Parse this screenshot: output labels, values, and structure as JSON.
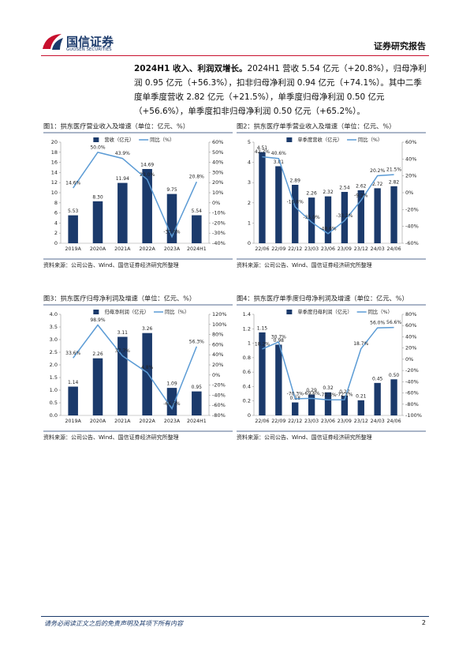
{
  "header": {
    "logo": "国信证券",
    "logo_en": "GUOSEN SECURITIES",
    "report_type": "证券研究报告"
  },
  "body": {
    "lead": "2024H1 收入、利润双增长。",
    "text": "2024H1 营收 5.54 亿元（+20.8%），归母净利润 0.95 亿元（+56.3%），扣非归母净利润 0.94 亿元（+74.1%）。其中二季度单季度营收 2.82 亿元（+21.5%），单季度归母净利润 0.50 亿元（+56.6%），单季度扣非归母净利润 0.50 亿元（+65.2%）。"
  },
  "chart_data": [
    {
      "type": "bar",
      "title": "图1：拱东医疗营业收入及增速（单位：亿元、%）",
      "categories": [
        "2019A",
        "2020A",
        "2021A",
        "2022A",
        "2023A",
        "2024H1"
      ],
      "series": [
        {
          "name": "营收（亿元）",
          "type": "bar",
          "color": "#1b3a6b",
          "values": [
            5.53,
            8.3,
            11.94,
            14.69,
            9.75,
            5.54
          ],
          "value_labels": [
            "5.53",
            "8.30",
            "11.94",
            "14.69",
            "9.75",
            "5.54"
          ]
        },
        {
          "name": "同比（%）",
          "type": "line",
          "axis": "y2",
          "color": "#5b9bd5",
          "values": [
            14.6,
            50.0,
            43.9,
            23.0,
            -33.6,
            20.8
          ],
          "value_labels": [
            "14.6%",
            "50.0%",
            "43.9%",
            "23.0%",
            "-33.6%",
            "20.8%"
          ]
        }
      ],
      "ylim": [
        0,
        20
      ],
      "yticks": [
        0,
        2,
        4,
        6,
        8,
        10,
        12,
        14,
        16,
        18,
        20
      ],
      "y2lim": [
        -40,
        60
      ],
      "y2ticks": [
        {
          "value": -40,
          "label": "-40%"
        },
        {
          "value": -30,
          "label": "-30%"
        },
        {
          "value": -20,
          "label": "-20%"
        },
        {
          "value": -10,
          "label": "-10%"
        },
        {
          "value": 0,
          "label": "0%"
        },
        {
          "value": 10,
          "label": "10%"
        },
        {
          "value": 20,
          "label": "20%"
        },
        {
          "value": 30,
          "label": "30%"
        },
        {
          "value": 40,
          "label": "40%"
        },
        {
          "value": 50,
          "label": "50%"
        },
        {
          "value": 60,
          "label": "60%"
        }
      ],
      "source": "资料来源：公司公告、Wind、国信证券经济研究所整理"
    },
    {
      "type": "bar",
      "title": "图2：拱东医疗单季营业收入及增速（单位：亿元、%）",
      "categories": [
        "22/06",
        "22/09",
        "22/12",
        "23/03",
        "23/06",
        "23/09",
        "23/12",
        "24/03",
        "24/06"
      ],
      "series": [
        {
          "name": "单季度营收（亿元）",
          "type": "bar",
          "color": "#1b3a6b",
          "values": [
            4.51,
            3.81,
            2.89,
            2.26,
            2.32,
            2.54,
            2.62,
            2.72,
            2.82
          ],
          "value_labels": [
            "4.51",
            "3.81",
            "2.89",
            "2.26",
            "2.32",
            "2.54",
            "2.62",
            "2.72",
            "2.82"
          ]
        },
        {
          "name": "同比（%）",
          "type": "line",
          "axis": "y2",
          "color": "#5b9bd5",
          "values": [
            42.7,
            40.6,
            -16.8,
            -35.0,
            -48.6,
            -33.2,
            -9.2,
            20.2,
            21.5
          ],
          "value_labels": [
            "42.7%",
            "40.6%",
            "-16.8%",
            "-35.0%",
            "-48.6%",
            "-33.2%",
            "-9.2%",
            "20.2%",
            "21.5%"
          ]
        }
      ],
      "ylim": [
        0,
        5
      ],
      "yticks": [
        0,
        1,
        2,
        3,
        4,
        5
      ],
      "y2lim": [
        -60,
        60
      ],
      "y2ticks": [
        {
          "value": -60,
          "label": "-60%"
        },
        {
          "value": -40,
          "label": "-40%"
        },
        {
          "value": -20,
          "label": "-20%"
        },
        {
          "value": 0,
          "label": "0%"
        },
        {
          "value": 20,
          "label": "20%"
        },
        {
          "value": 40,
          "label": "40%"
        },
        {
          "value": 60,
          "label": "60%"
        }
      ],
      "source": "资料来源：公司公告、Wind、国信证券经济研究所整理"
    },
    {
      "type": "bar",
      "title": "图3：拱东医疗归母净利润及增速（单位：亿元、%）",
      "categories": [
        "2019A",
        "2020A",
        "2021A",
        "2022A",
        "2023A",
        "2024H1"
      ],
      "series": [
        {
          "name": "归母净利润（亿元）",
          "type": "bar",
          "color": "#1b3a6b",
          "values": [
            1.14,
            2.26,
            3.11,
            3.26,
            1.09,
            0.95
          ],
          "value_labels": [
            "1.14",
            "2.26",
            "3.11",
            "3.26",
            "1.09",
            "0.95"
          ]
        },
        {
          "name": "同比（%）",
          "type": "line",
          "axis": "y2",
          "color": "#5b9bd5",
          "values": [
            33.6,
            98.9,
            37.7,
            4.8,
            -66.5,
            56.3
          ],
          "value_labels": [
            "33.6%",
            "98.9%",
            "37.7%",
            "4.8%",
            "-66.5%",
            "56.3%"
          ]
        }
      ],
      "ylim": [
        0,
        4
      ],
      "yticks": [
        {
          "value": 0,
          "label": "0.0"
        },
        0.5,
        {
          "value": 1,
          "label": "1.0"
        },
        1.5,
        {
          "value": 2,
          "label": "2.0"
        },
        2.5,
        {
          "value": 3,
          "label": "3.0"
        },
        3.5,
        {
          "value": 4,
          "label": "4.0"
        }
      ],
      "y2lim": [
        -80,
        120
      ],
      "y2ticks": [
        {
          "value": -80,
          "label": "-80%"
        },
        {
          "value": -60,
          "label": "-60%"
        },
        {
          "value": -40,
          "label": "-40%"
        },
        {
          "value": -20,
          "label": "-20%"
        },
        {
          "value": 0,
          "label": "0%"
        },
        {
          "value": 20,
          "label": "20%"
        },
        {
          "value": 40,
          "label": "40%"
        },
        {
          "value": 60,
          "label": "60%"
        },
        {
          "value": 80,
          "label": "80%"
        },
        {
          "value": 100,
          "label": "100%"
        },
        {
          "value": 120,
          "label": "120%"
        }
      ],
      "source": "资料来源：公司公告、Wind、国信证券经济研究所整理"
    },
    {
      "type": "bar",
      "title": "图4：拱东医疗单季度归母净利润及增速（单位：亿元、%）",
      "categories": [
        "22/06",
        "22/09",
        "22/12",
        "23/03",
        "23/06",
        "23/09",
        "23/12",
        "24/03",
        "24/06"
      ],
      "series": [
        {
          "name": "单季度归母利润（亿元）",
          "type": "bar",
          "color": "#1b3a6b",
          "values": [
            1.15,
            0.98,
            0.18,
            0.29,
            0.32,
            0.27,
            0.21,
            0.45,
            0.5
          ],
          "value_labels": [
            "1.15",
            "0.98",
            "0.18",
            "0.29",
            "0.32",
            "0.27",
            "0.21",
            "0.45",
            "0.50"
          ]
        },
        {
          "name": "同比（%）",
          "type": "line",
          "axis": "y2",
          "color": "#5b9bd5",
          "values": [
            18.2,
            30.7,
            -70.3,
            -69.6,
            -72.3,
            -72.1,
            18.7,
            56.0,
            56.6
          ],
          "value_labels": [
            "18.2%",
            "30.7%",
            "-70.3%",
            "-69.6%",
            "-72.3%",
            "-72.1%",
            "18.7%",
            "56.0%",
            "56.6%"
          ]
        }
      ],
      "ylim": [
        0,
        1.4
      ],
      "yticks": [
        0,
        0.2,
        0.4,
        0.6,
        0.8,
        1,
        1.2,
        1.4
      ],
      "y2lim": [
        -100,
        80
      ],
      "y2ticks": [
        {
          "value": -100,
          "label": "-100%"
        },
        {
          "value": -80,
          "label": "-80%"
        },
        {
          "value": -60,
          "label": "-60%"
        },
        {
          "value": -40,
          "label": "-40%"
        },
        {
          "value": -20,
          "label": "-20%"
        },
        {
          "value": 0,
          "label": "0%"
        },
        {
          "value": 20,
          "label": "20%"
        },
        {
          "value": 40,
          "label": "40%"
        },
        {
          "value": 60,
          "label": "60%"
        },
        {
          "value": 80,
          "label": "80%"
        }
      ],
      "source": "资料来源：公司公告、Wind、国信证券经济研究所整理"
    }
  ],
  "footer": {
    "disclaimer": "请务必阅读正文之后的免责声明及其项下所有内容",
    "page": "2"
  }
}
